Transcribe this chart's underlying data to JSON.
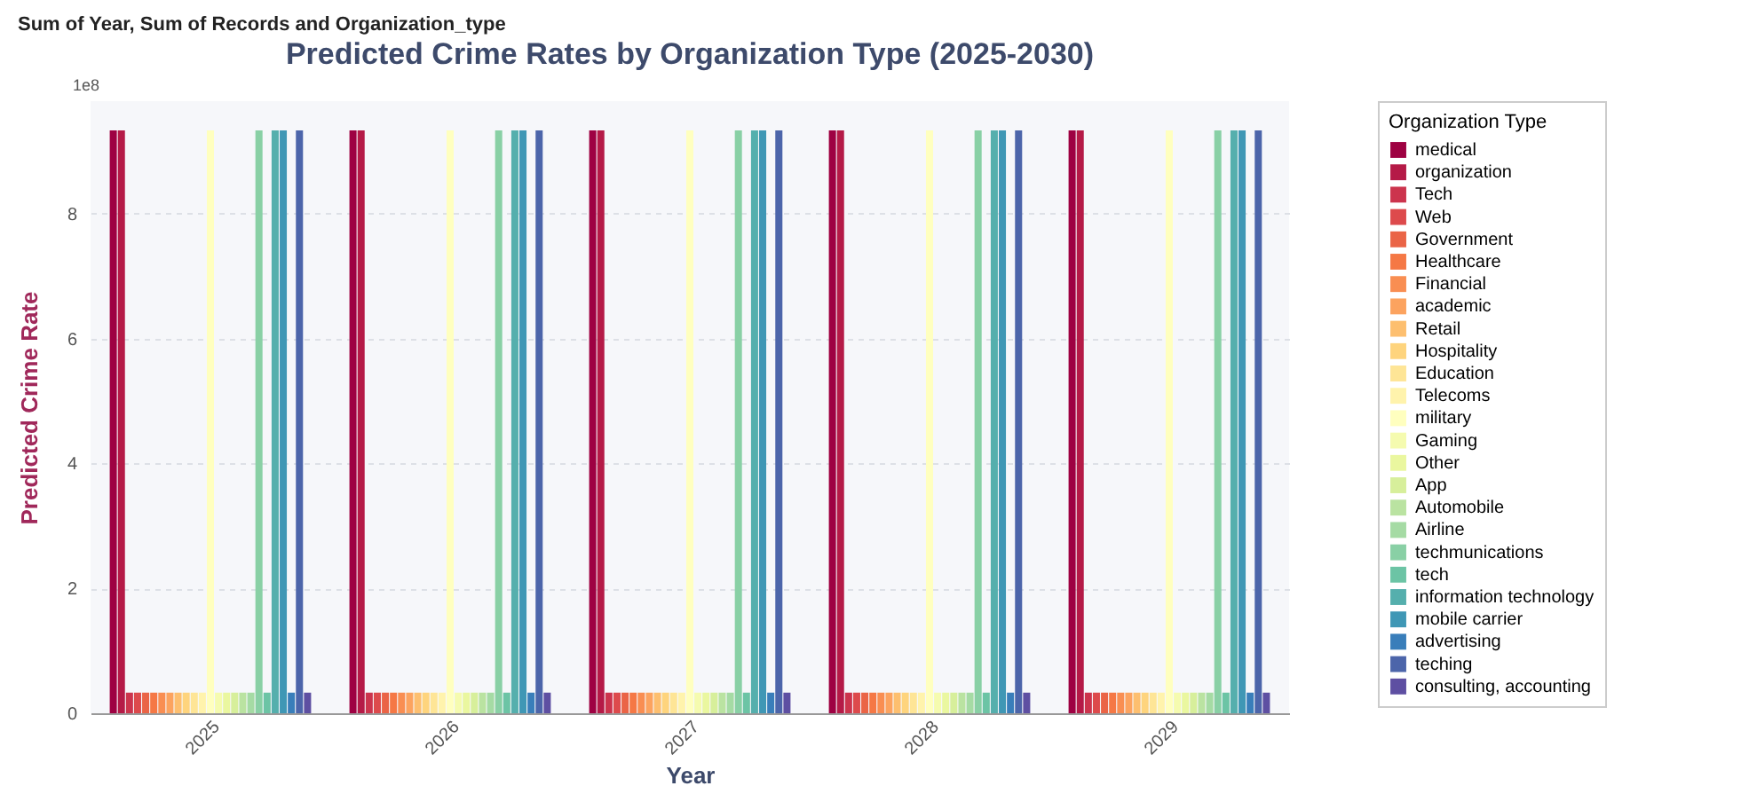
{
  "chart_data": {
    "type": "bar",
    "title": "Sum of Year, Sum of Records and Organization_type",
    "subtitle": "Predicted Crime Rates by Organization Type (2025-2030)",
    "xlabel": "Year",
    "ylabel": "Predicted Crime Rate",
    "legend_title": "Organization Type",
    "annotations": [
      "1e8"
    ],
    "categories": [
      "2025",
      "2026",
      "2027",
      "2028",
      "2029"
    ],
    "series": [
      {
        "name": "medical",
        "color": "#9e0142",
        "values": [
          9.33,
          9.33,
          9.33,
          9.33,
          9.33
        ]
      },
      {
        "name": "organization",
        "color": "#b51a47",
        "values": [
          9.33,
          9.33,
          9.33,
          9.33,
          9.33
        ]
      },
      {
        "name": "Tech",
        "color": "#cc344d",
        "values": [
          0.33,
          0.33,
          0.33,
          0.33,
          0.33
        ]
      },
      {
        "name": "Web",
        "color": "#dd4a4c",
        "values": [
          0.33,
          0.33,
          0.33,
          0.33,
          0.33
        ]
      },
      {
        "name": "Government",
        "color": "#ea6446",
        "values": [
          0.33,
          0.33,
          0.33,
          0.33,
          0.33
        ]
      },
      {
        "name": "Healthcare",
        "color": "#f57845",
        "values": [
          0.33,
          0.33,
          0.33,
          0.33,
          0.33
        ]
      },
      {
        "name": "Financial",
        "color": "#f98e52",
        "values": [
          0.33,
          0.33,
          0.33,
          0.33,
          0.33
        ]
      },
      {
        "name": "academic",
        "color": "#fca35f",
        "values": [
          0.33,
          0.33,
          0.33,
          0.33,
          0.33
        ]
      },
      {
        "name": "Retail",
        "color": "#fdbf6f",
        "values": [
          0.33,
          0.33,
          0.33,
          0.33,
          0.33
        ]
      },
      {
        "name": "Hospitality",
        "color": "#fed47d",
        "values": [
          0.33,
          0.33,
          0.33,
          0.33,
          0.33
        ]
      },
      {
        "name": "Education",
        "color": "#fee596",
        "values": [
          0.33,
          0.33,
          0.33,
          0.33,
          0.33
        ]
      },
      {
        "name": "Telecoms",
        "color": "#fff3ac",
        "values": [
          0.33,
          0.33,
          0.33,
          0.33,
          0.33
        ]
      },
      {
        "name": "military",
        "color": "#ffffbf",
        "values": [
          9.33,
          9.33,
          9.33,
          9.33,
          9.33
        ]
      },
      {
        "name": "Gaming",
        "color": "#f5fbaf",
        "values": [
          0.33,
          0.33,
          0.33,
          0.33,
          0.33
        ]
      },
      {
        "name": "Other",
        "color": "#eaf79f",
        "values": [
          0.33,
          0.33,
          0.33,
          0.33,
          0.33
        ]
      },
      {
        "name": "App",
        "color": "#d7ef9b",
        "values": [
          0.33,
          0.33,
          0.33,
          0.33,
          0.33
        ]
      },
      {
        "name": "Automobile",
        "color": "#bae3a1",
        "values": [
          0.33,
          0.33,
          0.33,
          0.33,
          0.33
        ]
      },
      {
        "name": "Airline",
        "color": "#a5dba4",
        "values": [
          0.33,
          0.33,
          0.33,
          0.33,
          0.33
        ]
      },
      {
        "name": "techmunications",
        "color": "#89d0a5",
        "values": [
          9.33,
          9.33,
          9.33,
          9.33,
          9.33
        ]
      },
      {
        "name": "tech",
        "color": "#6cc4a5",
        "values": [
          0.33,
          0.33,
          0.33,
          0.33,
          0.33
        ]
      },
      {
        "name": "information technology",
        "color": "#55afad",
        "values": [
          9.33,
          9.33,
          9.33,
          9.33,
          9.33
        ]
      },
      {
        "name": "mobile carrier",
        "color": "#3f97b5",
        "values": [
          9.33,
          9.33,
          9.33,
          9.33,
          9.33
        ]
      },
      {
        "name": "advertising",
        "color": "#397eba",
        "values": [
          0.33,
          0.33,
          0.33,
          0.33,
          0.33
        ]
      },
      {
        "name": "teching",
        "color": "#4c65aa",
        "values": [
          9.33,
          9.33,
          9.33,
          9.33,
          9.33
        ]
      },
      {
        "name": "consulting, accounting",
        "color": "#5e4fa2",
        "values": [
          0.33,
          0.33,
          0.33,
          0.33,
          0.33
        ]
      }
    ],
    "ylim": [
      0,
      9.8
    ],
    "yticks": [
      0,
      2,
      4,
      6,
      8
    ],
    "grid": "y",
    "legend": "right"
  }
}
